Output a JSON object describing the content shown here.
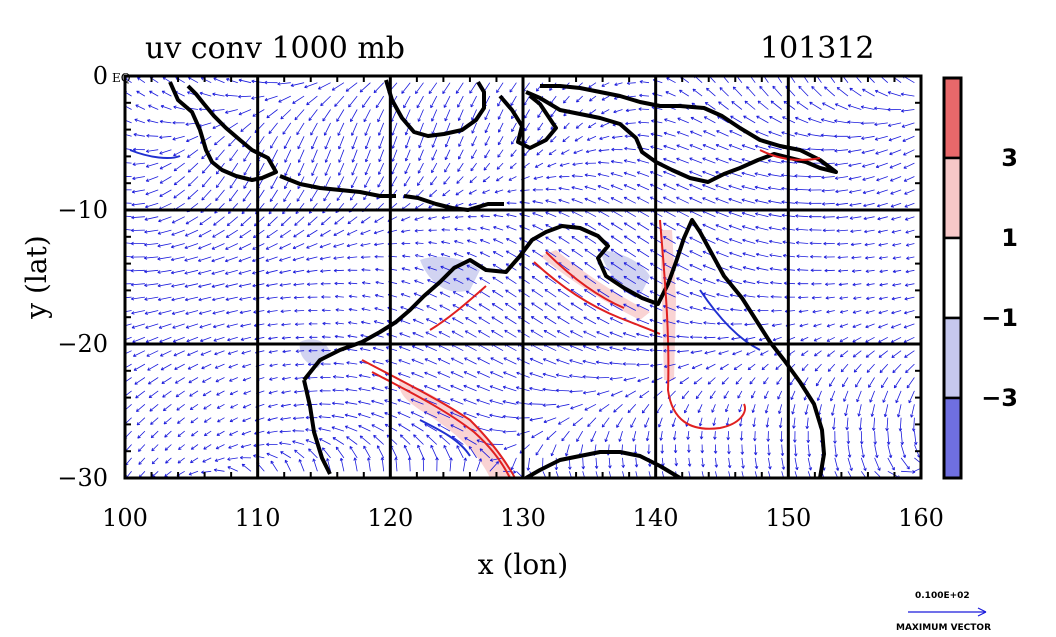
{
  "chart_data": {
    "type": "vector-contour map",
    "title": "uv conv 1000 mb",
    "date_label": "101312",
    "xlabel": "x (lon)",
    "ylabel": "y (lat)",
    "xlim": [
      100,
      160
    ],
    "ylim": [
      -30,
      0
    ],
    "x_ticks": [
      "100",
      "110",
      "120",
      "130",
      "140",
      "150",
      "160"
    ],
    "y_ticks": [
      "0",
      "−10",
      "−20",
      "−30"
    ],
    "y_top_suffix": "EQ",
    "grid": true,
    "colorbar": {
      "labels": [
        "3",
        "1",
        "−1",
        "−3"
      ],
      "colors": [
        "#e8686a",
        "#f7c8c8",
        "#ffffff",
        "#c6c8ee",
        "#6f6fe0"
      ]
    },
    "vector_legend": {
      "magnitude": "0.100E+02",
      "caption": "MAXIMUM VECTOR"
    },
    "colors": {
      "vectors": "#1a1adc",
      "positive_contour": "#e02020",
      "negative_contour": "#2030d0",
      "coast": "#000000"
    }
  }
}
